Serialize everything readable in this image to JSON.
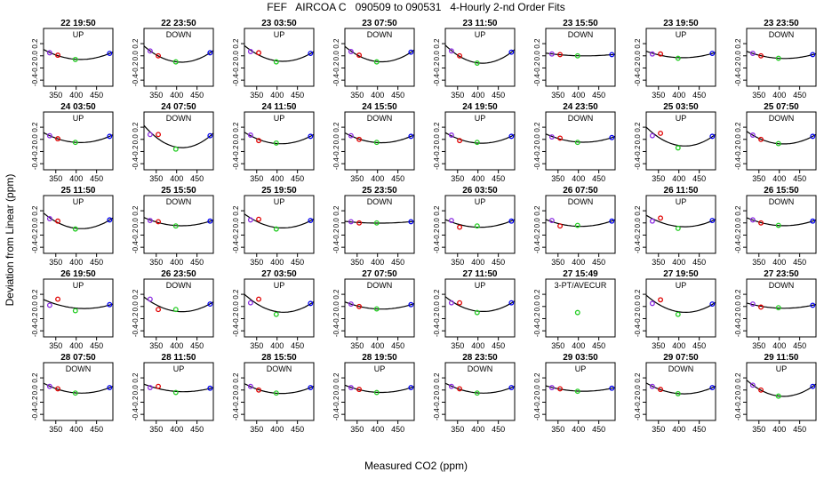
{
  "chart_data": {
    "type": "scatter",
    "title": "FEF   AIRCOA C   090509 to 090531   4-Hourly 2-nd Order Fits",
    "xlabel": "Measured CO2 (ppm)",
    "ylabel": "Deviation from Linear (ppm)",
    "xlim": [
      320,
      490
    ],
    "ylim": [
      -0.5,
      0.45
    ],
    "xticks": [
      "350",
      "400",
      "450"
    ],
    "yticks": [
      "-0.4",
      "-0.2",
      "0.0",
      "0.2"
    ],
    "grid": false,
    "layout": "5 rows x 8 columns",
    "x_standards": [
      335,
      355,
      398,
      482
    ],
    "point_colors": [
      "#8a2be2",
      "#e00000",
      "#22cc22",
      "#0000ee"
    ],
    "curve_color": "#000000",
    "panels": [
      {
        "title": "22 19:50",
        "label": "UP",
        "y": [
          0.05,
          0.01,
          -0.06,
          0.04
        ]
      },
      {
        "title": "22 23:50",
        "label": "DOWN",
        "y": [
          0.08,
          0.0,
          -0.1,
          0.05
        ]
      },
      {
        "title": "23 03:50",
        "label": "UP",
        "y": [
          0.07,
          0.05,
          -0.1,
          0.04
        ]
      },
      {
        "title": "23 07:50",
        "label": "DOWN",
        "y": [
          0.07,
          0.01,
          -0.1,
          0.06
        ]
      },
      {
        "title": "23 11:50",
        "label": "UP",
        "y": [
          0.08,
          0.0,
          -0.12,
          0.06
        ]
      },
      {
        "title": "23 15:50",
        "label": "DOWN",
        "y": [
          0.03,
          0.02,
          0.0,
          0.02
        ]
      },
      {
        "title": "23 19:50",
        "label": "UP",
        "y": [
          0.03,
          0.03,
          -0.04,
          0.04
        ]
      },
      {
        "title": "23 23:50",
        "label": "DOWN",
        "y": [
          0.04,
          0.0,
          -0.04,
          0.02
        ]
      },
      {
        "title": "24 03:50",
        "label": "UP",
        "y": [
          0.06,
          0.01,
          -0.05,
          0.05
        ]
      },
      {
        "title": "24 07:50",
        "label": "DOWN",
        "y": [
          0.08,
          0.08,
          -0.16,
          0.06
        ]
      },
      {
        "title": "24 11:50",
        "label": "UP",
        "y": [
          0.07,
          -0.02,
          -0.06,
          0.05
        ]
      },
      {
        "title": "24 15:50",
        "label": "DOWN",
        "y": [
          0.06,
          0.0,
          -0.05,
          0.05
        ]
      },
      {
        "title": "24 19:50",
        "label": "UP",
        "y": [
          0.07,
          -0.02,
          -0.05,
          0.05
        ]
      },
      {
        "title": "24 23:50",
        "label": "DOWN",
        "y": [
          0.04,
          0.02,
          -0.05,
          0.03
        ]
      },
      {
        "title": "25 03:50",
        "label": "UP",
        "y": [
          0.06,
          0.1,
          -0.14,
          0.05
        ]
      },
      {
        "title": "25 07:50",
        "label": "DOWN",
        "y": [
          0.07,
          0.0,
          -0.07,
          0.05
        ]
      },
      {
        "title": "25 11:50",
        "label": "UP",
        "y": [
          0.07,
          0.03,
          -0.1,
          0.05
        ]
      },
      {
        "title": "25 15:50",
        "label": "DOWN",
        "y": [
          0.04,
          0.02,
          -0.05,
          0.03
        ]
      },
      {
        "title": "25 19:50",
        "label": "UP",
        "y": [
          0.05,
          0.06,
          -0.1,
          0.04
        ]
      },
      {
        "title": "25 23:50",
        "label": "DOWN",
        "y": [
          0.02,
          0.0,
          0.0,
          0.02
        ]
      },
      {
        "title": "26 03:50",
        "label": "UP",
        "y": [
          0.04,
          -0.07,
          -0.05,
          0.03
        ]
      },
      {
        "title": "26 07:50",
        "label": "DOWN",
        "y": [
          0.04,
          -0.05,
          -0.04,
          0.03
        ]
      },
      {
        "title": "26 11:50",
        "label": "UP",
        "y": [
          0.03,
          0.08,
          -0.09,
          0.04
        ]
      },
      {
        "title": "26 15:50",
        "label": "DOWN",
        "y": [
          0.05,
          0.0,
          -0.04,
          0.03
        ]
      },
      {
        "title": "26 19:50",
        "label": "UP",
        "y": [
          0.02,
          0.12,
          -0.07,
          0.03
        ]
      },
      {
        "title": "26 23:50",
        "label": "DOWN",
        "y": [
          0.12,
          -0.05,
          -0.05,
          0.04
        ]
      },
      {
        "title": "27 03:50",
        "label": "UP",
        "y": [
          0.06,
          0.12,
          -0.13,
          0.05
        ]
      },
      {
        "title": "27 07:50",
        "label": "DOWN",
        "y": [
          0.04,
          0.0,
          -0.04,
          0.03
        ]
      },
      {
        "title": "27 11:50",
        "label": "UP",
        "y": [
          0.06,
          0.06,
          -0.1,
          0.06
        ]
      },
      {
        "title": "27 15:49",
        "label": "3-PT/AVECUR",
        "y": [
          null,
          null,
          -0.1,
          null
        ]
      },
      {
        "title": "27 19:50",
        "label": "UP",
        "y": [
          0.05,
          0.11,
          -0.13,
          0.04
        ]
      },
      {
        "title": "27 23:50",
        "label": "DOWN",
        "y": [
          0.04,
          -0.01,
          -0.02,
          0.02
        ]
      },
      {
        "title": "28 07:50",
        "label": "DOWN",
        "y": [
          0.06,
          0.02,
          -0.05,
          0.04
        ]
      },
      {
        "title": "28 11:50",
        "label": "UP",
        "y": [
          0.04,
          0.06,
          -0.04,
          0.03
        ]
      },
      {
        "title": "28 15:50",
        "label": "DOWN",
        "y": [
          0.06,
          0.0,
          -0.05,
          0.04
        ]
      },
      {
        "title": "28 19:50",
        "label": "UP",
        "y": [
          0.04,
          0.01,
          -0.04,
          0.04
        ]
      },
      {
        "title": "28 23:50",
        "label": "DOWN",
        "y": [
          0.06,
          0.02,
          -0.05,
          0.04
        ]
      },
      {
        "title": "29 03:50",
        "label": "UP",
        "y": [
          0.04,
          0.02,
          -0.02,
          0.03
        ]
      },
      {
        "title": "29 07:50",
        "label": "DOWN",
        "y": [
          0.06,
          0.01,
          -0.06,
          0.04
        ]
      },
      {
        "title": "29 11:50",
        "label": "UP",
        "y": [
          0.08,
          0.0,
          -0.1,
          0.06
        ]
      }
    ]
  }
}
